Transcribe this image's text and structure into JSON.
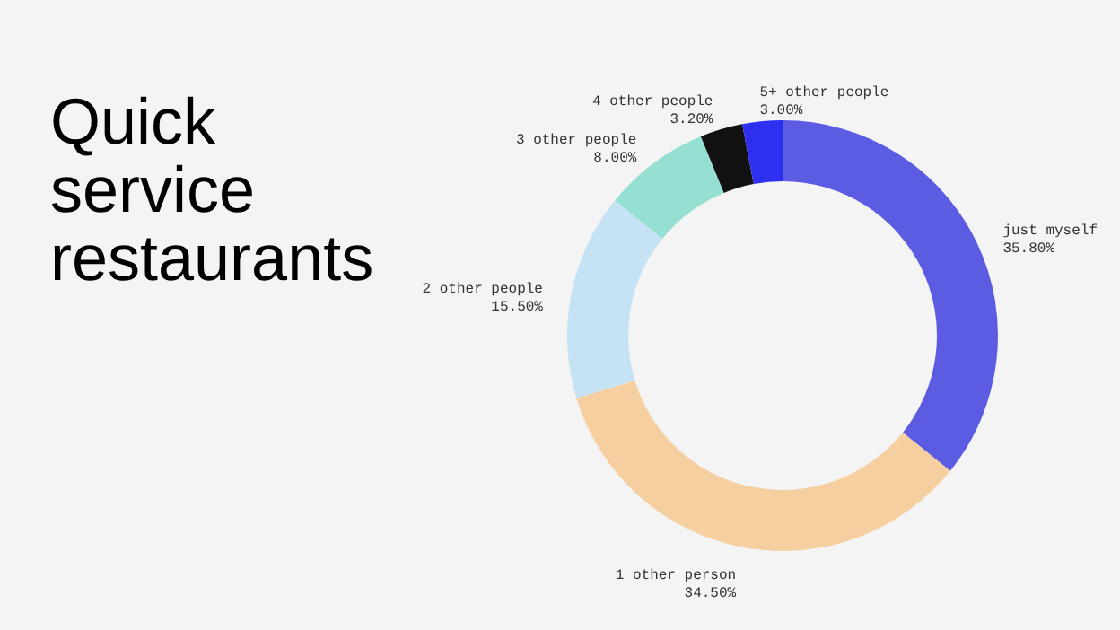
{
  "chart_data": {
    "type": "donut",
    "title": "Quick service restaurants",
    "categories": [
      "just myself",
      "1 other person",
      "2 other people",
      "3 other people",
      "4 other people",
      "5+ other people"
    ],
    "values": [
      35.8,
      34.5,
      15.5,
      8.0,
      3.2,
      3.0
    ],
    "value_labels": [
      "35.80%",
      "34.50%",
      "15.50%",
      "8.00%",
      "3.20%",
      "3.00%"
    ],
    "colors": [
      "#5b5ce2",
      "#f5cfa0",
      "#c5e3f5",
      "#95e0d3",
      "#111111",
      "#2f2ff0"
    ]
  }
}
